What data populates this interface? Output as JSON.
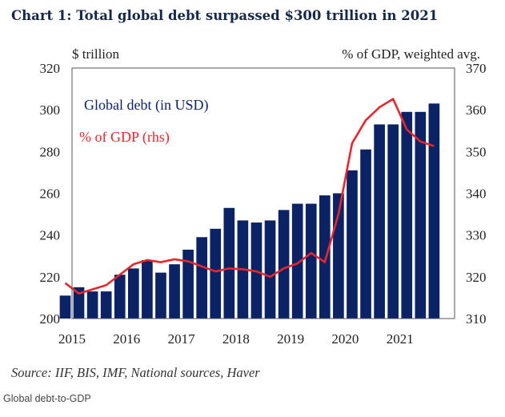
{
  "chart_data": {
    "type": "bar",
    "title": "Chart 1: Total global debt surpassed $300 trillion in 2021",
    "y_left_label": "$ trillion",
    "y_right_label": "% of GDP, weighted avg.",
    "y_left_range": [
      200,
      320
    ],
    "y_left_ticks": [
      "200",
      "220",
      "240",
      "260",
      "280",
      "300",
      "320"
    ],
    "y_right_range": [
      310,
      370
    ],
    "y_right_ticks": [
      "310",
      "320",
      "330",
      "340",
      "350",
      "360",
      "370"
    ],
    "x_range": [
      2015,
      2022
    ],
    "x_ticks": [
      "2015",
      "2016",
      "2017",
      "2018",
      "2019",
      "2020",
      "2021"
    ],
    "grid": false,
    "legend_placement": "top-left",
    "series": [
      {
        "name": "Global debt (in USD)",
        "type": "bar",
        "axis": "left",
        "color": "#0b2265",
        "x": [
          2014.875,
          2015.125,
          2015.375,
          2015.625,
          2015.875,
          2016.125,
          2016.375,
          2016.625,
          2016.875,
          2017.125,
          2017.375,
          2017.625,
          2017.875,
          2018.125,
          2018.375,
          2018.625,
          2018.875,
          2019.125,
          2019.375,
          2019.625,
          2019.875,
          2020.125,
          2020.375,
          2020.625,
          2020.875,
          2021.125,
          2021.375,
          2021.625
        ],
        "values": [
          211,
          215,
          213,
          213,
          221,
          224,
          228,
          222,
          226,
          233,
          239,
          243,
          253,
          247,
          246,
          247,
          252,
          255,
          255,
          259,
          260,
          271,
          281,
          293,
          293,
          299,
          299,
          303
        ]
      },
      {
        "name": "% of GDP (rhs)",
        "type": "line",
        "axis": "right",
        "color": "#e8262b",
        "x": [
          2014.875,
          2015.125,
          2015.375,
          2015.625,
          2015.875,
          2016.125,
          2016.375,
          2016.625,
          2016.875,
          2017.125,
          2017.375,
          2017.625,
          2017.875,
          2018.125,
          2018.375,
          2018.625,
          2018.875,
          2019.125,
          2019.375,
          2019.625,
          2019.875,
          2020.125,
          2020.375,
          2020.625,
          2020.875,
          2021.125,
          2021.375,
          2021.625
        ],
        "values": [
          318.5,
          316,
          317,
          318,
          320.5,
          323,
          324,
          323.5,
          324.2,
          323.7,
          322.5,
          321.3,
          322,
          321.8,
          321.3,
          320,
          322,
          323.2,
          325.7,
          323.5,
          335,
          352,
          357.5,
          360.6,
          362.6,
          355.3,
          352.4,
          351.3
        ]
      }
    ],
    "source": "Source: IIF, BIS, IMF, National sources, Haver"
  },
  "caption": "Global debt-to-GDP"
}
